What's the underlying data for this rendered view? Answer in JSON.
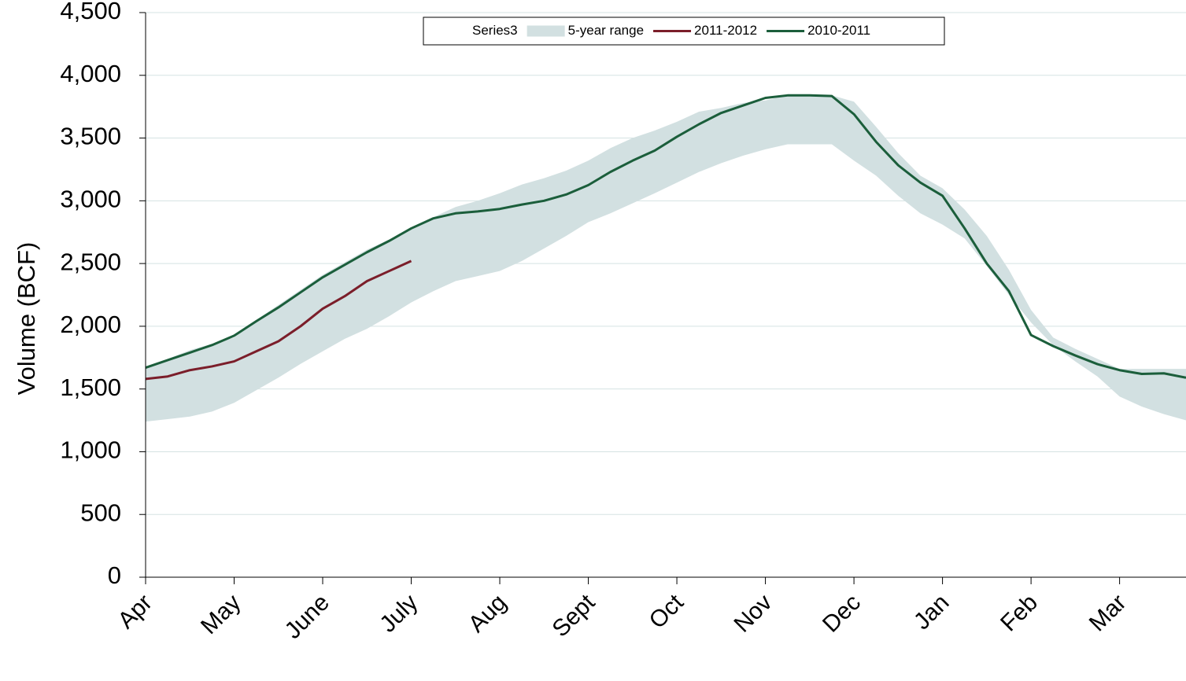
{
  "chart_data": {
    "type": "line",
    "y_label": "Volume (BCF)",
    "categories": [
      "Apr",
      null,
      null,
      null,
      "May",
      null,
      null,
      null,
      "June",
      null,
      null,
      null,
      "July",
      null,
      null,
      null,
      "Aug",
      null,
      null,
      null,
      "Sept",
      null,
      null,
      null,
      "Oct",
      null,
      null,
      null,
      "Nov",
      null,
      null,
      null,
      "Dec",
      null,
      null,
      null,
      "Jan",
      null,
      null,
      null,
      "Feb",
      null,
      null,
      null,
      "Mar",
      null,
      null,
      null
    ],
    "series": [
      {
        "name": "Series3",
        "type": "area",
        "values": [
          1240,
          1260,
          1280,
          1320,
          1390,
          1490,
          1590,
          1700,
          1800,
          1900,
          1980,
          2080,
          2190,
          2280,
          2360,
          2400,
          2440,
          2520,
          2620,
          2720,
          2830,
          2900,
          2980,
          3060,
          3145,
          3230,
          3300,
          3360,
          3410,
          3450,
          3450,
          3450,
          3320,
          3200,
          3040,
          2900,
          2810,
          2700,
          2480,
          2250,
          2030,
          1850,
          1720,
          1600,
          1440,
          1360,
          1300,
          1250
        ]
      },
      {
        "name": "5-year range",
        "type": "area",
        "color": "#d2e0e1",
        "values": [
          420,
          480,
          530,
          540,
          520,
          560,
          580,
          590,
          610,
          610,
          630,
          610,
          580,
          590,
          590,
          600,
          620,
          610,
          560,
          520,
          490,
          520,
          520,
          500,
          485,
          480,
          440,
          420,
          390,
          390,
          390,
          390,
          470,
          390,
          340,
          300,
          290,
          230,
          240,
          200,
          100,
          60,
          100,
          140,
          220,
          300,
          360,
          410
        ]
      },
      {
        "name": "2011-2012",
        "type": "line",
        "color": "#7b1e2a",
        "values": [
          1580,
          1600,
          1650,
          1680,
          1720,
          1800,
          1880,
          2000,
          2140,
          2240,
          2360,
          2440,
          2520,
          null,
          null,
          null,
          null,
          null,
          null,
          null,
          null,
          null,
          null,
          null,
          null,
          null,
          null,
          null,
          null,
          null,
          null,
          null,
          null,
          null,
          null,
          null,
          null,
          null,
          null,
          null,
          null,
          null,
          null,
          null,
          null,
          null,
          null,
          null
        ]
      },
      {
        "name": "2010-2011",
        "type": "line",
        "color": "#1b5e3b",
        "values": [
          1670,
          1730,
          1790,
          1850,
          1925,
          2040,
          2150,
          2270,
          2390,
          2490,
          2590,
          2680,
          2780,
          2860,
          2900,
          2915,
          2935,
          2970,
          3000,
          3050,
          3125,
          3230,
          3320,
          3400,
          3510,
          3610,
          3700,
          3760,
          3820,
          3840,
          3840,
          3835,
          3690,
          3470,
          3283,
          3145,
          3040,
          2780,
          2500,
          2280,
          1930,
          1842,
          1767,
          1698,
          1650,
          1620,
          1625,
          1590
        ]
      }
    ],
    "ylim": [
      0,
      4500
    ],
    "yticks": [
      0,
      500,
      {
        "value": 1000,
        "label": "1,000"
      },
      {
        "value": 1500,
        "label": "1,500"
      },
      {
        "value": 2000,
        "label": "2,000"
      },
      {
        "value": 2500,
        "label": "2,500"
      },
      {
        "value": 3000,
        "label": "3,000"
      },
      {
        "value": 3500,
        "label": "3,500"
      },
      {
        "value": 4000,
        "label": "4,000"
      },
      {
        "value": 4500,
        "label": "4,500"
      }
    ],
    "grid": true,
    "stacked_areas": true,
    "legend": "top"
  }
}
